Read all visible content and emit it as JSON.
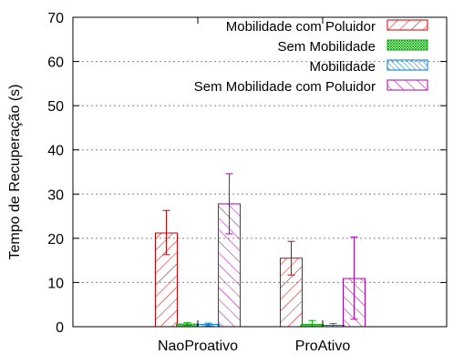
{
  "chart_data": {
    "type": "bar",
    "title": "",
    "xlabel": "",
    "ylabel": "Tempo de Recuperação (s)",
    "ylim": [
      0,
      70
    ],
    "yticks": [
      "0",
      "10",
      "20",
      "30",
      "40",
      "50",
      "60",
      "70"
    ],
    "grid": "horizontal dotted",
    "legend_position": "top-right",
    "categories": [
      "NaoProativo",
      "ProAtivo"
    ],
    "series": [
      {
        "name": "Mobilidade com Poluidor",
        "color": "#cc0000",
        "pattern": "diagonal",
        "values": [
          21.2,
          15.5
        ],
        "err_low": [
          16.3,
          11.7
        ],
        "err_high": [
          26.3,
          19.3
        ]
      },
      {
        "name": "Sem Mobilidade",
        "color": "#00aa00",
        "pattern": "crosshatch",
        "values": [
          0.6,
          0.5
        ],
        "err_low": [
          0.3,
          0.0
        ],
        "err_high": [
          0.9,
          1.4
        ]
      },
      {
        "name": "Mobilidade",
        "color": "#0077cc",
        "pattern": "diagonal-dense",
        "values": [
          0.5,
          0.3
        ],
        "err_low": [
          0.2,
          0.0
        ],
        "err_high": [
          0.8,
          0.7
        ]
      },
      {
        "name": "Sem Mobilidade com Poluidor",
        "color": "#aa00aa",
        "pattern": "diagonal",
        "values": [
          27.8,
          10.9
        ],
        "err_low": [
          21.0,
          1.7
        ],
        "err_high": [
          34.6,
          20.3
        ]
      }
    ]
  }
}
